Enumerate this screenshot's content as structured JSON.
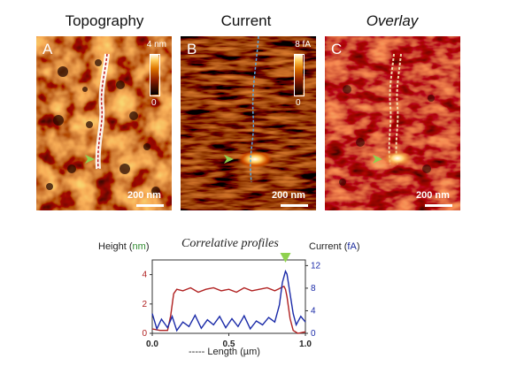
{
  "panels": [
    {
      "id": "A",
      "title": "Topography",
      "title_italic": false,
      "colorbar_max": "4 nm",
      "colorbar_min": "0",
      "scale": "200 nm"
    },
    {
      "id": "B",
      "title": "Current",
      "title_italic": false,
      "colorbar_max": "8 fA",
      "colorbar_min": "0",
      "scale": "200 nm"
    },
    {
      "id": "C",
      "title": "Overlay",
      "title_italic": true,
      "colorbar_max": "",
      "colorbar_min": "",
      "scale": "200 nm"
    }
  ],
  "profile": {
    "left_axis_label_prefix": "Height (",
    "left_axis_unit": "nm",
    "left_axis_label_suffix": ")",
    "right_axis_label_prefix": "Current (",
    "right_axis_unit": "fA",
    "right_axis_label_suffix": ")",
    "title": "Correlative profiles",
    "x_label": "----- Length (µm)"
  },
  "colors": {
    "height_unit": "#2e8b2e",
    "current_unit": "#1a2a9c",
    "height_curve": "#b02020",
    "current_curve": "#1a2aa8",
    "marker": "#8fd14f"
  },
  "chart_data": {
    "type": "line",
    "title": "Correlative profiles",
    "xlabel": "Length (µm)",
    "xlim": [
      0.0,
      1.0
    ],
    "x_ticks": [
      "0.0",
      "0.5",
      "1.0"
    ],
    "y_left": {
      "label": "Height (nm)",
      "lim": [
        0,
        5
      ],
      "ticks": [
        "0",
        "2",
        "4"
      ],
      "color": "#b02020"
    },
    "y_right": {
      "label": "Current (fA)",
      "lim": [
        0,
        13
      ],
      "ticks": [
        "0",
        "4",
        "8",
        "12"
      ],
      "color": "#1a2aa8"
    },
    "series": [
      {
        "axis": "left",
        "x": [
          0.0,
          0.05,
          0.1,
          0.12,
          0.14,
          0.16,
          0.2,
          0.25,
          0.3,
          0.35,
          0.4,
          0.45,
          0.5,
          0.55,
          0.6,
          0.65,
          0.7,
          0.75,
          0.8,
          0.82,
          0.84,
          0.86,
          0.87,
          0.88,
          0.9,
          0.92,
          0.95,
          1.0
        ],
        "y": [
          0.3,
          0.2,
          0.2,
          1.2,
          2.7,
          3.0,
          2.9,
          3.1,
          2.8,
          3.0,
          3.1,
          2.9,
          3.0,
          2.8,
          3.1,
          2.9,
          3.0,
          3.1,
          2.9,
          3.0,
          3.1,
          3.2,
          3.0,
          2.5,
          1.0,
          0.2,
          0.0,
          0.1
        ]
      },
      {
        "axis": "right",
        "x": [
          0.0,
          0.03,
          0.06,
          0.1,
          0.13,
          0.16,
          0.2,
          0.24,
          0.28,
          0.32,
          0.36,
          0.4,
          0.44,
          0.48,
          0.52,
          0.56,
          0.6,
          0.64,
          0.68,
          0.72,
          0.76,
          0.8,
          0.83,
          0.85,
          0.87,
          0.88,
          0.9,
          0.92,
          0.94,
          0.97,
          1.0
        ],
        "y": [
          3.5,
          0.8,
          2.5,
          1.0,
          3.0,
          0.5,
          2.0,
          1.2,
          3.2,
          0.9,
          2.4,
          1.5,
          3.0,
          1.0,
          2.6,
          1.2,
          3.1,
          0.8,
          2.2,
          1.5,
          2.8,
          2.0,
          5.0,
          9.0,
          11.0,
          10.5,
          7.0,
          3.5,
          1.5,
          3.0,
          2.0
        ]
      }
    ],
    "annotations": [
      "green arrow marking current peak near x = 0.87"
    ]
  }
}
